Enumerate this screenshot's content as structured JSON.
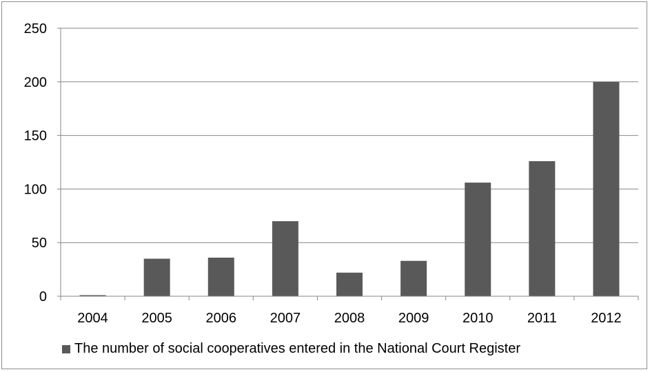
{
  "chart_data": {
    "type": "bar",
    "categories": [
      "2004",
      "2005",
      "2006",
      "2007",
      "2008",
      "2009",
      "2010",
      "2011",
      "2012"
    ],
    "series": [
      {
        "name": "The number of social cooperatives entered in the National Court Register",
        "values": [
          1,
          35,
          36,
          70,
          22,
          33,
          106,
          126,
          200
        ],
        "color": "#595959"
      }
    ],
    "y_ticks": [
      "0",
      "50",
      "100",
      "150",
      "200",
      "250"
    ],
    "ylim": [
      0,
      250
    ],
    "grid": true,
    "legend_position": "bottom"
  },
  "colors": {
    "bar": "#595959",
    "grid": "#868686",
    "border": "#8c8c8c"
  }
}
